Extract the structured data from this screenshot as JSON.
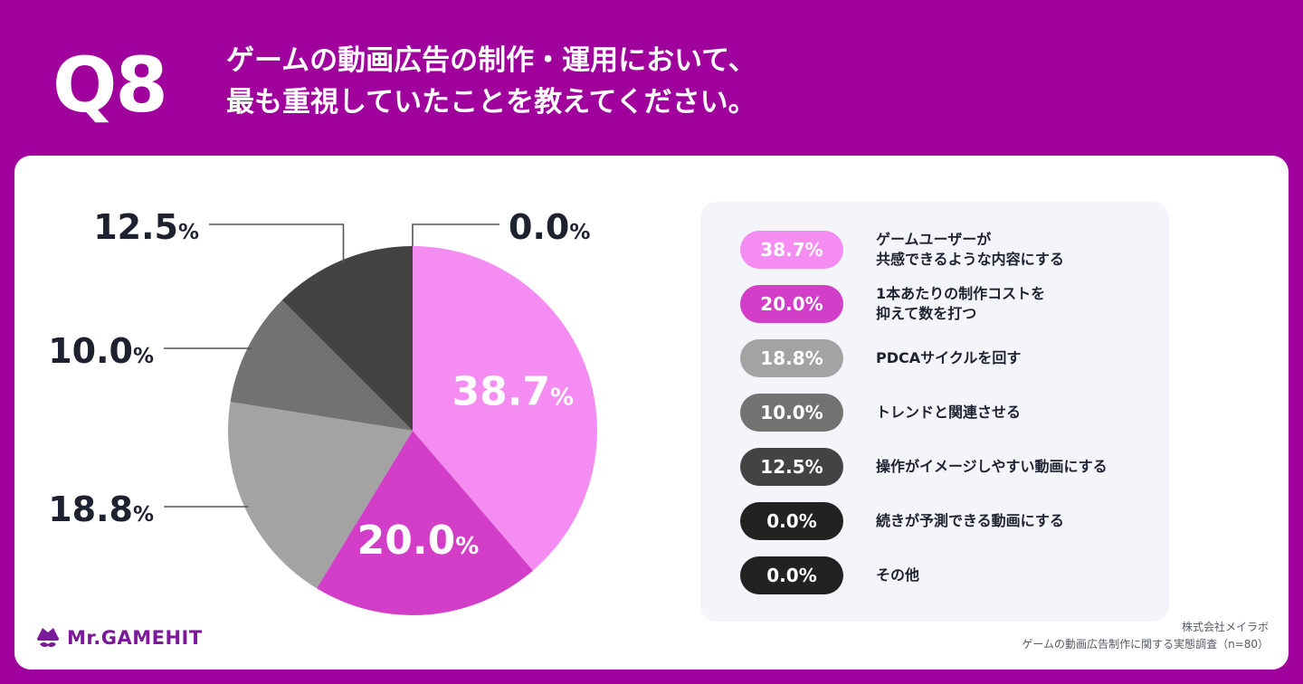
{
  "header": {
    "question_number": "Q8",
    "title_line1": "ゲームの動画広告の制作・運用において、",
    "title_line2": "最も重視していたことを教えてください。"
  },
  "chart_data": {
    "type": "pie",
    "unit": "%",
    "slices": [
      {
        "label": "ゲームユーザーが\n共感できるような内容にする",
        "value": 38.7,
        "display": "38.7",
        "color": "#f48cf2",
        "pill_color": "#f48cf2"
      },
      {
        "label": "1本あたりの制作コストを\n抑えて数を打つ",
        "value": 20.0,
        "display": "20.0",
        "color": "#d23ec8",
        "pill_color": "#d23ec8"
      },
      {
        "label": "PDCAサイクルを回す",
        "value": 18.8,
        "display": "18.8",
        "color": "#a3a3a3",
        "pill_color": "#a3a3a3"
      },
      {
        "label": "トレンドと関連させる",
        "value": 10.0,
        "display": "10.0",
        "color": "#727272",
        "pill_color": "#727272"
      },
      {
        "label": "操作がイメージしやすい動画にする",
        "value": 12.5,
        "display": "12.5",
        "color": "#434343",
        "pill_color": "#434343"
      },
      {
        "label": "続きが予測できる動画にする",
        "value": 0.0,
        "display": "0.0",
        "color": "#222222",
        "pill_color": "#222222"
      },
      {
        "label": "その他",
        "value": 0.0,
        "display": "0.0",
        "color": "#222222",
        "pill_color": "#222222"
      }
    ]
  },
  "brand": {
    "name": "Mr.GAMEHIT"
  },
  "source": {
    "company": "株式会社メイラボ",
    "survey": "ゲームの動画広告制作に関する実態調査（n=80）"
  }
}
